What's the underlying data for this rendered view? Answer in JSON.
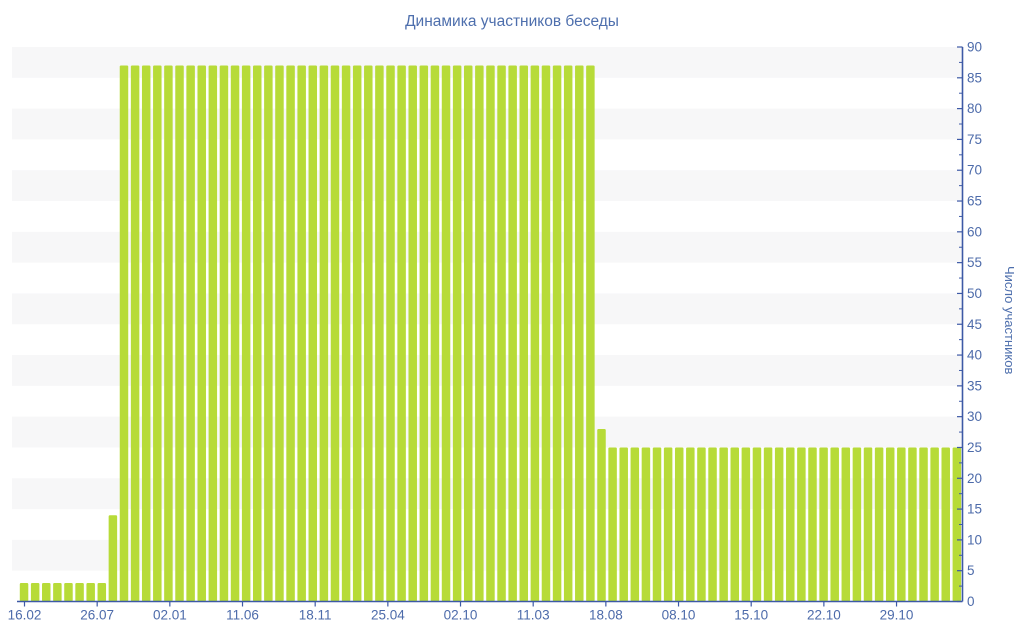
{
  "chart_data": {
    "type": "bar",
    "title": "Динамика участников беседы",
    "xlabel": "",
    "ylabel": "Число участников",
    "legend": "none",
    "grid": "alternating horizontal gray bands every 5 units",
    "ylim": [
      0,
      90
    ],
    "y_axis_side": "right",
    "y_major_tick_step": 5,
    "y_minor_tick_step": 2.5,
    "y_tick_labels": [
      0,
      5,
      10,
      15,
      20,
      25,
      30,
      35,
      40,
      45,
      50,
      55,
      60,
      65,
      70,
      75,
      80,
      85,
      90
    ],
    "x_tick_labels": [
      "16.02",
      "26.07",
      "02.01",
      "11.06",
      "18.11",
      "25.04",
      "02.10",
      "11.03",
      "18.08",
      "08.10",
      "15.10",
      "22.10",
      "29.10"
    ],
    "series": [
      {
        "name": "Число участников",
        "values": [
          3,
          3,
          3,
          3,
          3,
          3,
          3,
          3,
          14,
          87,
          87,
          87,
          87,
          87,
          87,
          87,
          87,
          87,
          87,
          87,
          87,
          87,
          87,
          87,
          87,
          87,
          87,
          87,
          87,
          87,
          87,
          87,
          87,
          87,
          87,
          87,
          87,
          87,
          87,
          87,
          87,
          87,
          87,
          87,
          87,
          87,
          87,
          87,
          87,
          87,
          87,
          87,
          28,
          25,
          25,
          25,
          25,
          25,
          25,
          25,
          25,
          25,
          25,
          25,
          25,
          25,
          25,
          25,
          25,
          25,
          25,
          25,
          25,
          25,
          25,
          25,
          25,
          25,
          25,
          25,
          25,
          25,
          25,
          25,
          25
        ]
      }
    ],
    "colors": {
      "bar": "#b7db38",
      "stripe": "#f7f7f8",
      "axis": "#3d59a6",
      "tick_label": "#4d6baa",
      "title": "#4e6fad",
      "background": "#ffffff"
    }
  }
}
